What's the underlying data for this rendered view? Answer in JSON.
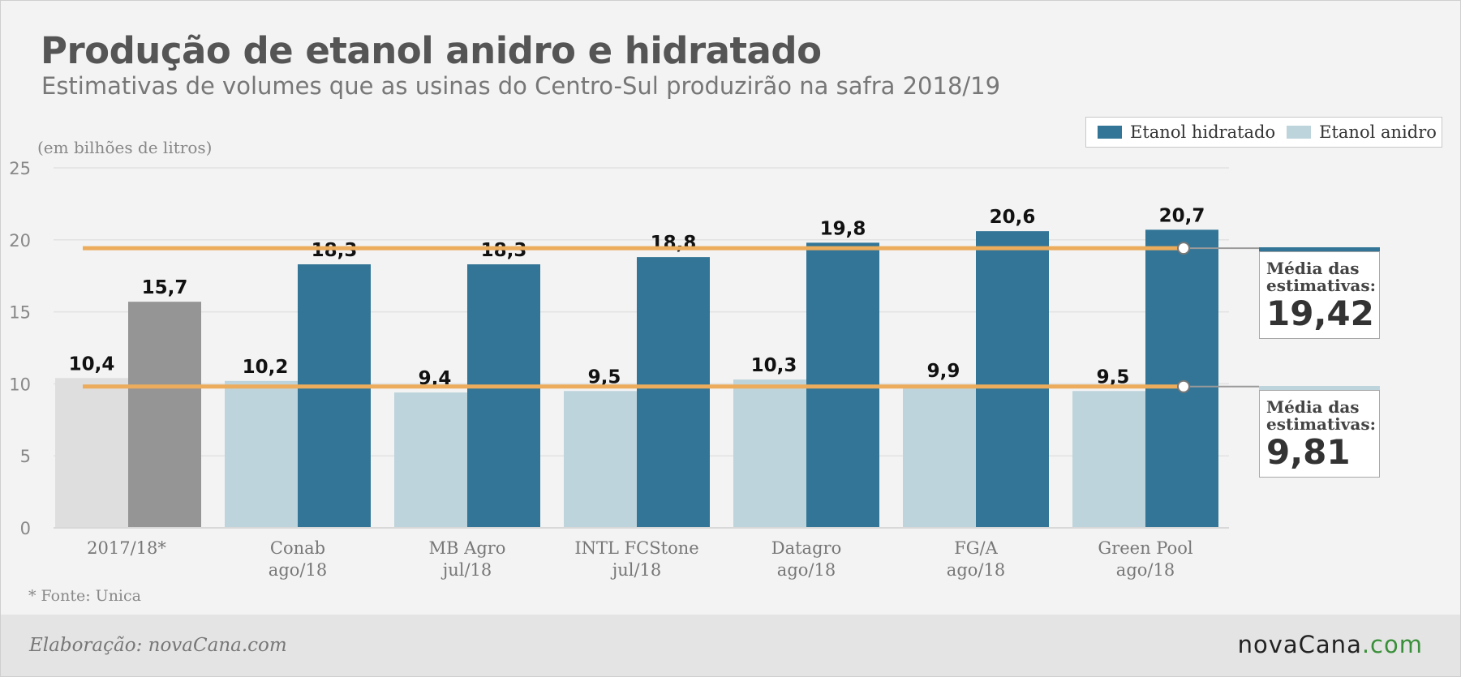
{
  "title": "Produção de etanol anidro e hidratado",
  "subtitle": "Estimativas de volumes que as usinas do Centro-Sul produzirão na safra 2018/19",
  "unit_note": "(em bilhões de litros)",
  "source_note": "* Fonte: Unica",
  "credit": "Elaboração: novaCana.com",
  "brand": {
    "name": "novaCana",
    "suffix": ".com"
  },
  "colors": {
    "hidratado": "#327596",
    "anidro": "#bed4dc",
    "hist_hidratado": "#959595",
    "hist_anidro": "#dedede",
    "average_line": "#ecac5c",
    "brand_accent": "#3a8f3a"
  },
  "averages": [
    {
      "label": "Média das estimativas:",
      "value": "19,42",
      "y": 19.42,
      "cap_color": "#327596"
    },
    {
      "label": "Média das estimativas:",
      "value": "9,81",
      "y": 9.81,
      "cap_color": "#bed4dc"
    }
  ],
  "chart_data": {
    "type": "bar",
    "title": "Produção de etanol anidro e hidratado",
    "subtitle": "Estimativas de volumes que as usinas do Centro-Sul produzirão na safra 2018/19",
    "ylabel": "(em bilhões de litros)",
    "ylim": [
      0,
      25
    ],
    "yticks": [
      0,
      5,
      10,
      15,
      20,
      25
    ],
    "grid": true,
    "legend": "top-right",
    "categories": [
      [
        "2017/18*"
      ],
      [
        "Conab",
        "ago/18"
      ],
      [
        "MB Agro",
        "jul/18"
      ],
      [
        "INTL FCStone",
        "jul/18"
      ],
      [
        "Datagro",
        "ago/18"
      ],
      [
        "FG/A",
        "ago/18"
      ],
      [
        "Green Pool",
        "ago/18"
      ]
    ],
    "series": [
      {
        "name": "Etanol anidro",
        "values": [
          10.4,
          10.2,
          9.4,
          9.5,
          10.3,
          9.9,
          9.5
        ],
        "labels": [
          "10,4",
          "10,2",
          "9,4",
          "9,5",
          "10,3",
          "9,9",
          "9,5"
        ]
      },
      {
        "name": "Etanol hidratado",
        "values": [
          15.7,
          18.3,
          18.3,
          18.8,
          19.8,
          20.6,
          20.7
        ],
        "labels": [
          "15,7",
          "18,3",
          "18,3",
          "18,8",
          "19,8",
          "20,6",
          "20,7"
        ]
      }
    ]
  }
}
